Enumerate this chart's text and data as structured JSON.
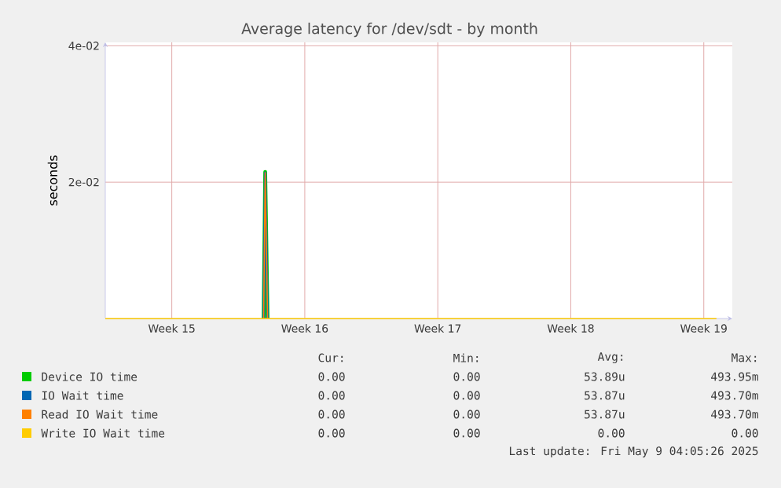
{
  "chart_data": {
    "type": "line",
    "title": "Average latency for /dev/sdt - by month",
    "ylabel": "seconds",
    "x": [
      "2025-04-07",
      "2025-04-15T08:00",
      "2025-04-15T10:00",
      "2025-04-15T13:00",
      "2025-05-09T04:00"
    ],
    "series": [
      {
        "name": "Device IO time",
        "color": "#00cc00",
        "values": [
          null,
          0,
          0.0215,
          0,
          null
        ]
      },
      {
        "name": "IO Wait time",
        "color": "#0066b3",
        "values": [
          null,
          0,
          0.0214,
          0,
          null
        ]
      },
      {
        "name": "Read IO Wait time",
        "color": "#ff8000",
        "values": [
          null,
          0,
          0.0214,
          0,
          null
        ]
      },
      {
        "name": "Write IO Wait time",
        "color": "#ffcc00",
        "values": [
          0,
          0,
          0,
          0,
          0
        ]
      }
    ],
    "xlim": [
      "2025-04-07",
      "2025-05-10"
    ],
    "xticks": [
      {
        "value": "2025-04-10T12:00",
        "label": "Week 15"
      },
      {
        "value": "2025-04-17T12:00",
        "label": "Week 16"
      },
      {
        "value": "2025-04-24T12:00",
        "label": "Week 17"
      },
      {
        "value": "2025-05-01T12:00",
        "label": "Week 18"
      },
      {
        "value": "2025-05-08T12:00",
        "label": "Week 19"
      }
    ],
    "ylim": [
      0,
      0.0405
    ],
    "yticks": [
      {
        "value": 0.02,
        "label": "2e-02"
      },
      {
        "value": 0.04,
        "label": "4e-02"
      }
    ],
    "grid": true,
    "legend": "bottom",
    "marker": "none",
    "line_style": "solid",
    "annotations": [
      "Cur:",
      "Min:",
      "Avg:",
      "Max:",
      "0.00",
      "0.00",
      "53.89u",
      "493.95m",
      "0.00",
      "0.00",
      "53.87u",
      "493.70m",
      "0.00",
      "0.00",
      "53.87u",
      "493.70m",
      "0.00",
      "0.00",
      "0.00",
      "0.00",
      "Last update: Fri May  9 04:05:26 2025"
    ]
  }
}
